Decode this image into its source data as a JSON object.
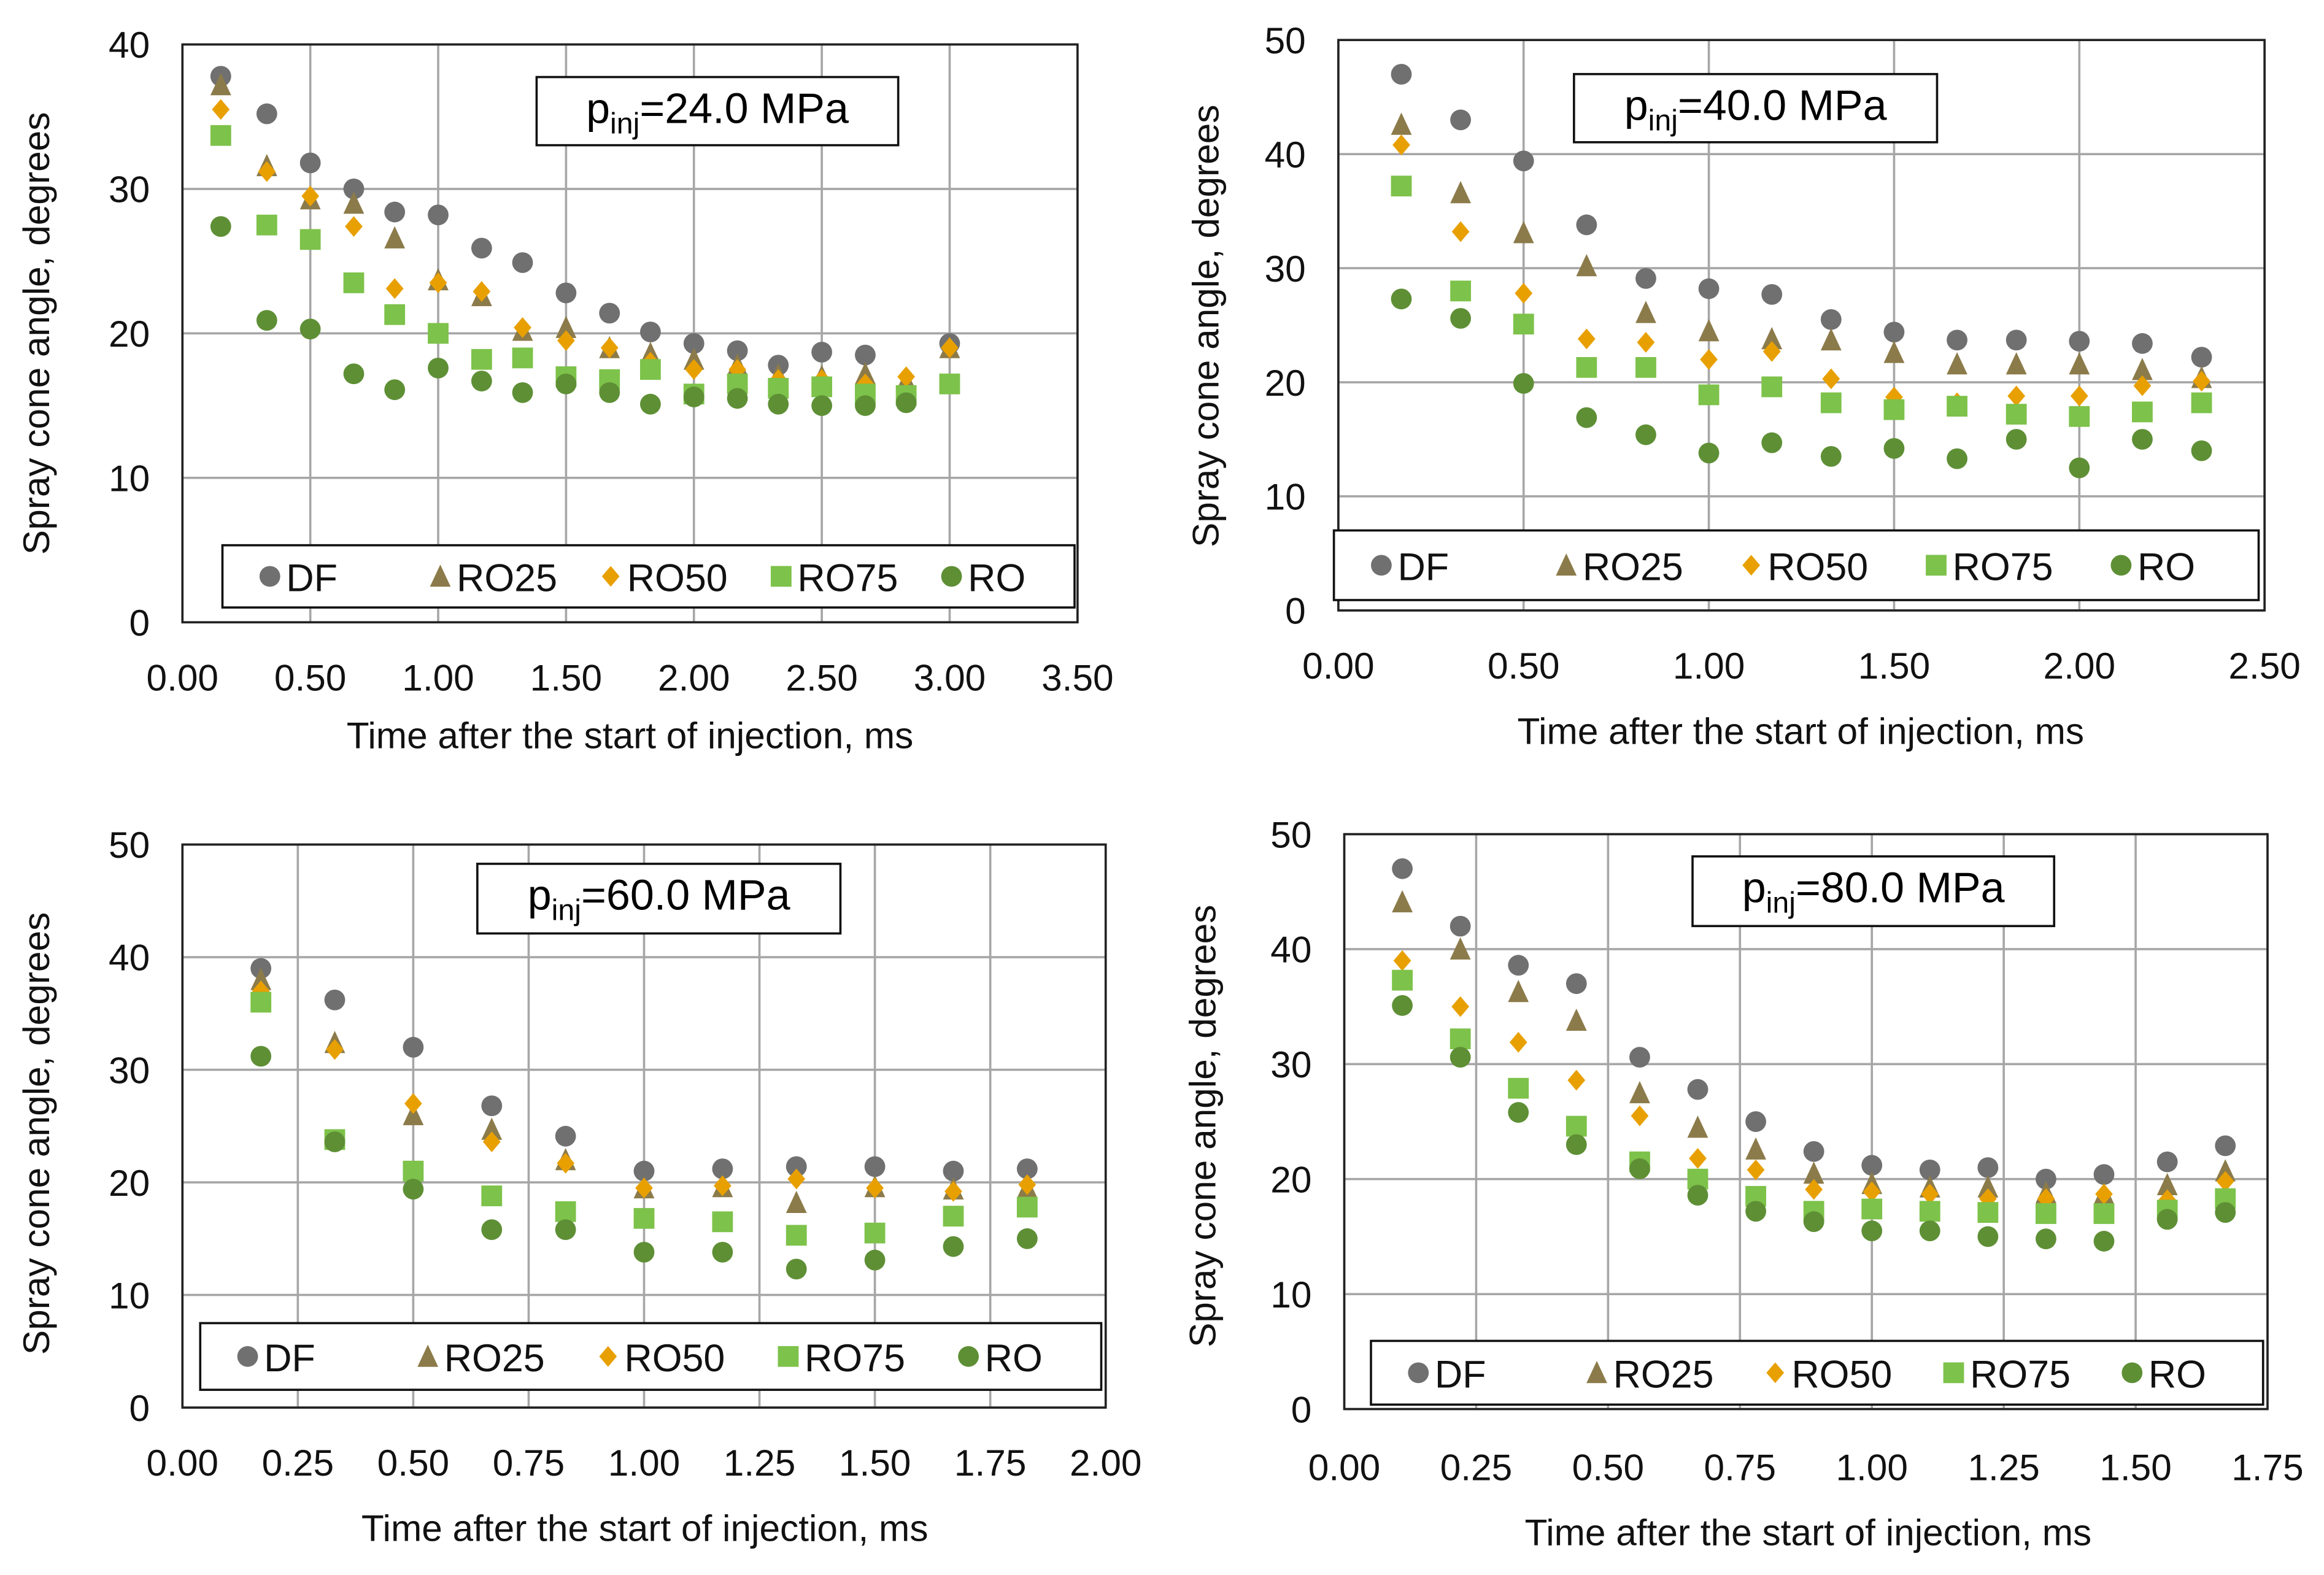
{
  "colors": {
    "DF": "#707070",
    "RO25": "#8c7b4a",
    "RO50": "#e8a000",
    "RO75": "#7dc24a",
    "RO": "#5e8f35",
    "grid": "#a6a6a6"
  },
  "chart_data": [
    {
      "type": "scatter",
      "title_prefix": "p",
      "title_sub": "inj",
      "title_suffix": "=24.0 MPa",
      "xlabel": "Time after the start of injection, ms",
      "ylabel": "Spray cone angle, degrees",
      "xlim": [
        0,
        3.5
      ],
      "xstep": 0.5,
      "ylim": [
        0,
        40
      ],
      "ystep": 10,
      "xticks": [
        "0.00",
        "0.50",
        "1.00",
        "1.50",
        "2.00",
        "2.50",
        "3.00",
        "3.50"
      ],
      "yticks": [
        "0",
        "10",
        "20",
        "30",
        "40"
      ],
      "grid": true,
      "legend": "bottom-inside",
      "x": [
        0.15,
        0.33,
        0.5,
        0.67,
        0.83,
        1.0,
        1.17,
        1.33,
        1.5,
        1.67,
        1.83,
        2.0,
        2.17,
        2.33,
        2.5,
        2.67,
        2.83,
        3.0
      ],
      "series": [
        {
          "name": "DF",
          "marker": "circle",
          "values": [
            37.8,
            35.2,
            31.8,
            30,
            28.4,
            28.2,
            25.9,
            24.9,
            22.8,
            21.4,
            20.1,
            19.3,
            18.8,
            17.8,
            18.7,
            18.5,
            null,
            19.3
          ]
        },
        {
          "name": "RO25",
          "marker": "triangle",
          "values": [
            37.2,
            31.6,
            29.3,
            29,
            26.6,
            23.7,
            22.6,
            20.2,
            20.4,
            19,
            18.6,
            18.2,
            17.8,
            17.1,
            17,
            17.2,
            16.7,
            19
          ]
        },
        {
          "name": "RO50",
          "marker": "diamond",
          "values": [
            35.5,
            31.2,
            29.5,
            27.4,
            23.1,
            23.5,
            22.9,
            20.4,
            19.5,
            19,
            18,
            17.5,
            17.5,
            16.8,
            16.8,
            16.5,
            17,
            19
          ]
        },
        {
          "name": "RO75",
          "marker": "square",
          "values": [
            33.7,
            27.5,
            26.5,
            23.5,
            21.3,
            20,
            18.2,
            18.3,
            17,
            16.8,
            17.5,
            15.8,
            16.5,
            16.2,
            16.3,
            15.8,
            15.7,
            16.5
          ]
        },
        {
          "name": "RO",
          "marker": "circle",
          "values": [
            27.4,
            20.9,
            20.3,
            17.2,
            16.1,
            17.6,
            16.7,
            15.9,
            16.5,
            15.9,
            15.1,
            15.6,
            15.5,
            15.1,
            15,
            15,
            15.2,
            null
          ]
        }
      ]
    },
    {
      "type": "scatter",
      "title_prefix": "p",
      "title_sub": "inj",
      "title_suffix": "=40.0 MPa",
      "xlabel": "Time after the start of injection, ms",
      "ylabel": "Spray cone angle, degrees",
      "xlim": [
        0,
        2.5
      ],
      "xstep": 0.5,
      "ylim": [
        0,
        50
      ],
      "ystep": 10,
      "xticks": [
        "0.00",
        "0.50",
        "1.00",
        "1.50",
        "2.00",
        "2.50"
      ],
      "yticks": [
        "0",
        "10",
        "20",
        "30",
        "40",
        "50"
      ],
      "grid": true,
      "legend": "bottom-inside",
      "x": [
        0.17,
        0.33,
        0.5,
        0.67,
        0.83,
        1.0,
        1.17,
        1.33,
        1.5,
        1.67,
        1.83,
        2.0,
        2.17,
        2.33
      ],
      "series": [
        {
          "name": "DF",
          "marker": "circle",
          "values": [
            47,
            43,
            39.4,
            33.8,
            29.1,
            28.2,
            27.7,
            25.5,
            24.4,
            23.7,
            23.7,
            23.6,
            23.4,
            22.2
          ]
        },
        {
          "name": "RO25",
          "marker": "triangle",
          "values": [
            42.6,
            36.6,
            33.1,
            30.2,
            26.1,
            24.5,
            23.8,
            23.7,
            22.6,
            21.6,
            21.6,
            21.6,
            21.1,
            20.4
          ]
        },
        {
          "name": "RO50",
          "marker": "diamond",
          "values": [
            40.8,
            33.2,
            27.8,
            23.8,
            23.5,
            22,
            22.7,
            20.3,
            18.7,
            18.2,
            18.8,
            18.8,
            19.7,
            20.1
          ]
        },
        {
          "name": "RO75",
          "marker": "square",
          "values": [
            37.2,
            28,
            25.1,
            21.3,
            21.3,
            18.9,
            19.6,
            18.2,
            17.6,
            17.9,
            17.2,
            17,
            17.4,
            18.2
          ]
        },
        {
          "name": "RO",
          "marker": "circle",
          "values": [
            27.3,
            25.6,
            19.9,
            16.9,
            15.4,
            13.8,
            14.7,
            13.5,
            14.2,
            13.3,
            15,
            12.5,
            15,
            14
          ]
        }
      ]
    },
    {
      "type": "scatter",
      "title_prefix": "p",
      "title_sub": "inj",
      "title_suffix": "=60.0 MPa",
      "xlabel": "Time after the start of injection, ms",
      "ylabel": "Spray cone angle, degrees",
      "xlim": [
        0,
        2.0
      ],
      "xstep": 0.25,
      "ylim": [
        0,
        50
      ],
      "ystep": 10,
      "xticks": [
        "0.00",
        "0.25",
        "0.50",
        "0.75",
        "1.00",
        "1.25",
        "1.50",
        "1.75",
        "2.00"
      ],
      "yticks": [
        "0",
        "10",
        "20",
        "30",
        "40",
        "50"
      ],
      "grid": true,
      "legend": "bottom-inside",
      "x": [
        0.17,
        0.33,
        0.5,
        0.67,
        0.83,
        1.0,
        1.17,
        1.33,
        1.5,
        1.67,
        1.83
      ],
      "series": [
        {
          "name": "DF",
          "marker": "circle",
          "values": [
            39,
            36.2,
            32,
            26.8,
            24.1,
            21,
            21.2,
            21.4,
            21.4,
            21,
            21.2
          ]
        },
        {
          "name": "RO25",
          "marker": "triangle",
          "values": [
            38,
            32.4,
            26,
            24.7,
            22,
            19.5,
            19.6,
            18.2,
            19.6,
            19.4,
            19.5
          ]
        },
        {
          "name": "RO50",
          "marker": "diamond",
          "values": [
            37,
            31.8,
            27,
            23.6,
            21.7,
            19.5,
            19.7,
            20.3,
            19.5,
            19.2,
            19.8
          ]
        },
        {
          "name": "RO75",
          "marker": "square",
          "values": [
            36,
            23.8,
            21,
            18.8,
            17.4,
            16.8,
            16.5,
            15.3,
            15.5,
            17,
            17.8
          ]
        },
        {
          "name": "RO",
          "marker": "circle",
          "values": [
            31.2,
            23.6,
            19.4,
            15.8,
            15.8,
            13.8,
            13.8,
            12.3,
            13.1,
            14.3,
            15
          ]
        }
      ]
    },
    {
      "type": "scatter",
      "title_prefix": "p",
      "title_sub": "inj",
      "title_suffix": "=80.0 MPa",
      "xlabel": "Time after the start of injection, ms",
      "ylabel": "Spray cone angle, degrees",
      "xlim": [
        0,
        1.75
      ],
      "xstep": 0.25,
      "ylim": [
        0,
        50
      ],
      "ystep": 10,
      "xticks": [
        "0.00",
        "0.25",
        "0.50",
        "0.75",
        "1.00",
        "1.25",
        "1.50",
        "1.75"
      ],
      "yticks": [
        "0",
        "10",
        "20",
        "30",
        "40",
        "50"
      ],
      "grid": true,
      "legend": "bottom-inside",
      "x": [
        0.11,
        0.22,
        0.33,
        0.44,
        0.56,
        0.67,
        0.78,
        0.89,
        1.0,
        1.11,
        1.22,
        1.33,
        1.44,
        1.56,
        1.67
      ],
      "series": [
        {
          "name": "DF",
          "marker": "circle",
          "values": [
            47,
            42,
            38.6,
            37,
            30.6,
            27.8,
            25,
            22.4,
            21.2,
            20.8,
            21,
            20,
            20.4,
            21.5,
            22.9
          ]
        },
        {
          "name": "RO25",
          "marker": "triangle",
          "values": [
            44.1,
            40,
            36.3,
            33.8,
            27.5,
            24.5,
            22.6,
            20.5,
            19.6,
            19.3,
            19.3,
            18.8,
            18.7,
            19.5,
            20.7
          ]
        },
        {
          "name": "RO50",
          "marker": "diamond",
          "values": [
            39,
            35,
            31.9,
            28.6,
            25.5,
            21.8,
            20.8,
            19.1,
            18.9,
            18.7,
            18.3,
            18.3,
            18.7,
            18.2,
            19.8
          ]
        },
        {
          "name": "RO75",
          "marker": "square",
          "values": [
            37.3,
            32.2,
            27.9,
            24.6,
            21.5,
            20,
            18.5,
            17.2,
            17.4,
            17.2,
            17.1,
            17,
            17,
            17.3,
            18.3
          ]
        },
        {
          "name": "RO",
          "marker": "circle",
          "values": [
            35.1,
            30.6,
            25.8,
            23,
            20.9,
            18.6,
            17.2,
            16.3,
            15.5,
            15.5,
            15,
            14.8,
            14.6,
            16.5,
            17.1
          ]
        }
      ]
    }
  ]
}
